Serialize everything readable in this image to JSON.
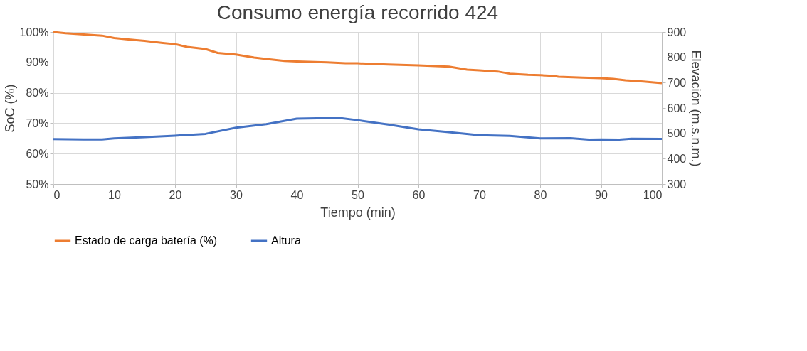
{
  "chart_data": {
    "type": "line",
    "title": "Consumo energía recorrido 424",
    "xlabel": "Tiempo (min)",
    "ylabel": "SoC (%)",
    "y2label": "Elevación (m.s.n.m.)",
    "xlim": [
      0,
      100
    ],
    "xticks": [
      0,
      10,
      20,
      30,
      40,
      50,
      60,
      70,
      80,
      90,
      100
    ],
    "ylim": [
      50,
      100
    ],
    "yticks": [
      {
        "value": 50,
        "label": "50%"
      },
      {
        "value": 60,
        "label": "60%"
      },
      {
        "value": 70,
        "label": "70%"
      },
      {
        "value": 80,
        "label": "80%"
      },
      {
        "value": 90,
        "label": "90%"
      },
      {
        "value": 100,
        "label": "100%"
      }
    ],
    "y2lim": [
      300,
      900
    ],
    "y2ticks": [
      300,
      400,
      500,
      600,
      700,
      800,
      900
    ],
    "grid": true,
    "legend": "bottom",
    "marker": "none",
    "line_style": "solid",
    "series": [
      {
        "name": "Estado de carga batería (%)",
        "color": "#ed7d31",
        "x": [
          0,
          2,
          5,
          8,
          10,
          12,
          15,
          18,
          20,
          22,
          25,
          27,
          30,
          33,
          35,
          38,
          40,
          45,
          48,
          50,
          55,
          60,
          65,
          68,
          70,
          73,
          75,
          78,
          80,
          82,
          83,
          87,
          90,
          92,
          94,
          97,
          100
        ],
        "values": [
          100,
          99.6,
          99.2,
          98.8,
          98,
          97.6,
          97.1,
          96.4,
          96,
          95.1,
          94.4,
          93.1,
          92.6,
          91.6,
          91.1,
          90.5,
          90.3,
          90,
          89.7,
          89.7,
          89.3,
          89,
          88.6,
          87.6,
          87.4,
          87,
          86.3,
          85.9,
          85.8,
          85.6,
          85.3,
          85,
          84.8,
          84.6,
          84.1,
          83.7,
          83.2
        ]
      },
      {
        "name": "Altura",
        "color": "#4472c4",
        "axis": "y2",
        "x": [
          0,
          5,
          8,
          10,
          15,
          20,
          25,
          30,
          35,
          40,
          45,
          47,
          50,
          55,
          60,
          65,
          70,
          75,
          80,
          85,
          88,
          90,
          93,
          95,
          100
        ],
        "values": [
          477,
          476,
          476,
          480,
          485,
          491,
          498,
          522,
          536,
          558,
          560,
          561,
          552,
          535,
          516,
          505,
          493,
          490,
          480,
          481,
          475,
          476,
          475,
          479,
          478
        ]
      }
    ]
  }
}
